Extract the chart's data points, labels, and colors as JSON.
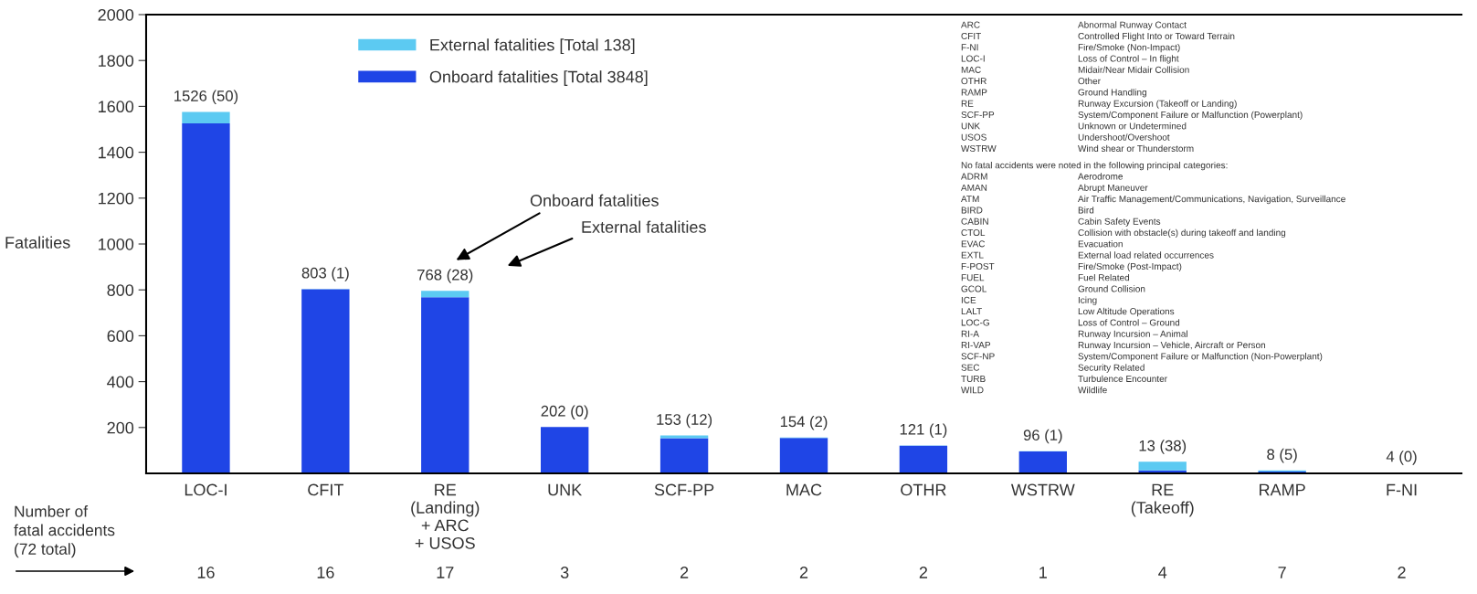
{
  "chart_data": {
    "type": "bar",
    "stacked": true,
    "categories": [
      "LOC-I",
      "CFIT",
      "RE\n(Landing)\n+ ARC\n+ USOS",
      "UNK",
      "SCF-PP",
      "MAC",
      "OTHR",
      "WSTRW",
      "RE\n(Takeoff)",
      "RAMP",
      "F-NI"
    ],
    "series": [
      {
        "name": "Onboard fatalities [Total 3848]",
        "color": "#1f45e6",
        "values": [
          1526,
          803,
          768,
          202,
          153,
          154,
          121,
          96,
          13,
          8,
          4
        ]
      },
      {
        "name": "External fatalities [Total 138]",
        "color": "#5ccaf2",
        "values": [
          50,
          1,
          28,
          0,
          12,
          2,
          1,
          1,
          38,
          5,
          0
        ],
        "value_labels": [
          "1526 (50)",
          "803 (1)",
          "768 (28)",
          "202 (0)",
          "153 (12)",
          "154 (2)",
          "121 (1)",
          "96 (1)",
          "13 (38)",
          "8 (5)",
          "4 (0)"
        ]
      }
    ],
    "ylabel": "Fatalities",
    "ylim": [
      0,
      2000
    ],
    "yticks": [
      200,
      400,
      600,
      800,
      1000,
      1200,
      1400,
      1600,
      1800,
      2000
    ],
    "grid": false,
    "legend": "top left",
    "annotations": [
      {
        "text": "Onboard fatalities"
      },
      {
        "text": "External fatalities"
      },
      {
        "text": "Number of\nfatal accidents\n(72 total)"
      },
      "16",
      "16",
      "17",
      "3",
      "2",
      "2",
      "2",
      "1",
      "4",
      "7",
      "2",
      "ARC",
      "Abnormal Runway Contact",
      "CFIT",
      "Controlled Flight Into or Toward Terrain",
      "F-NI",
      "Fire/Smoke (Non-Impact)",
      "LOC-I",
      "Loss of Control – In flight",
      "MAC",
      "Midair/Near Midair Collision",
      "OTHR",
      "Other",
      "RAMP",
      "Ground Handling",
      "RE",
      "Runway Excursion (Takeoff or Landing)",
      "SCF-PP",
      "System/Component Failure or Malfunction (Powerplant)",
      "UNK",
      "Unknown or Undetermined",
      "USOS",
      "Undershoot/Overshoot",
      "WSTRW",
      "Wind shear or Thunderstorm",
      {
        "text": "No fatal accidents were noted in the following principal categories:"
      },
      "ADRM",
      "Aerodrome",
      "AMAN",
      "Abrupt Maneuver",
      "ATM",
      "Air Traffic Management/Communications, Navigation, Surveillance",
      "BIRD",
      "Bird",
      "CABIN",
      "Cabin Safety Events",
      "CTOL",
      "Collision with obstacle(s) during takeoff and landing",
      "EVAC",
      "Evacuation",
      "EXTL",
      "External load related occurrences",
      "F-POST",
      "Fire/Smoke (Post-Impact)",
      "FUEL",
      "Fuel Related",
      "GCOL",
      "Ground Collision",
      "ICE",
      "Icing",
      "LALT",
      "Low Altitude Operations",
      "LOC-G",
      "Loss of Control – Ground",
      "RI-A",
      "Runway Incursion – Animal",
      "RI-VAP",
      "Runway Incursion – Vehicle, Aircraft or Person",
      "SCF-NP",
      "System/Component Failure or Malfunction (Non-Powerplant)",
      "SEC",
      "Security Related",
      "TURB",
      "Turbulence Encounter",
      "WILD",
      "Wildlife"
    ]
  }
}
